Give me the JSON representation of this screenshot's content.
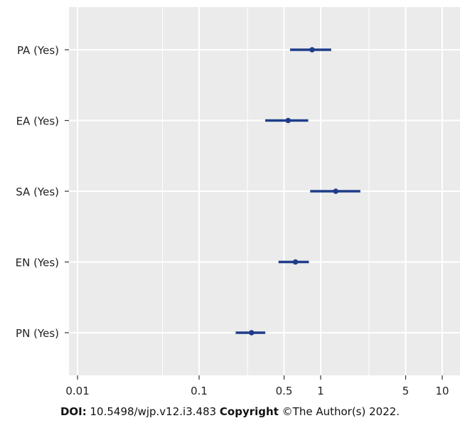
{
  "chart_data": {
    "type": "forest",
    "x_scale": "log",
    "xlim": [
      0.0085,
      14
    ],
    "grid": true,
    "ticks": [
      0.01,
      0.1,
      0.5,
      1,
      5,
      10
    ],
    "tick_labels": [
      "0.01",
      "0.1",
      "0.5",
      "1",
      "5",
      "10"
    ],
    "minor_gridlines": [
      0.05,
      0.25,
      2.5
    ],
    "categories": [
      "PA (Yes)",
      "EA (Yes)",
      "SA (Yes)",
      "EN (Yes)",
      "PN (Yes)"
    ],
    "estimates": [
      0.85,
      0.54,
      1.33,
      0.62,
      0.27
    ],
    "ci_lower": [
      0.56,
      0.35,
      0.82,
      0.45,
      0.2
    ],
    "ci_upper": [
      1.22,
      0.79,
      2.12,
      0.8,
      0.35
    ],
    "colors": {
      "marker": "#1f3d8a",
      "panel": "#ebebeb",
      "grid": "#ffffff"
    }
  },
  "footer": {
    "doi_label": "DOI:",
    "doi_value": " 10.5498/wjp.v12.i3.483 ",
    "copyright_label": "Copyright",
    "copyright_value": " ©The Author(s) 2022."
  }
}
